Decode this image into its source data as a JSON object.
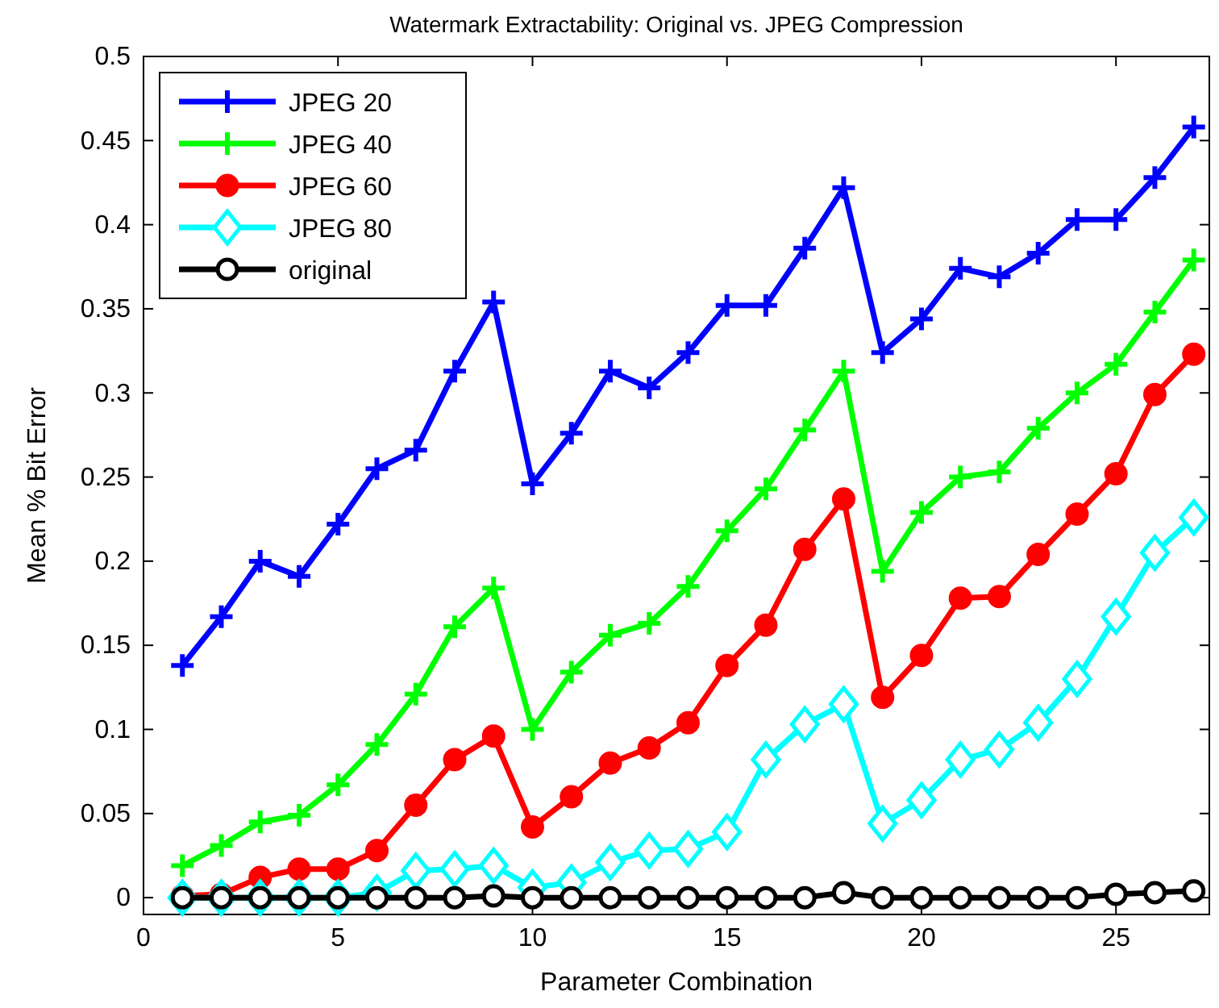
{
  "chart_data": {
    "type": "line",
    "title": "Watermark Extractability: Original vs. JPEG Compression",
    "xlabel": "Parameter Combination",
    "ylabel": "Mean % Bit Error",
    "x": [
      1,
      2,
      3,
      4,
      5,
      6,
      7,
      8,
      9,
      10,
      11,
      12,
      13,
      14,
      15,
      16,
      17,
      18,
      19,
      20,
      21,
      22,
      23,
      24,
      25,
      26,
      27
    ],
    "series": [
      {
        "name": "JPEG 20",
        "color": "#0000ff",
        "marker": "cross",
        "values": [
          0.138,
          0.167,
          0.2,
          0.191,
          0.222,
          0.255,
          0.266,
          0.313,
          0.354,
          0.246,
          0.276,
          0.313,
          0.303,
          0.324,
          0.352,
          0.352,
          0.386,
          0.422,
          0.324,
          0.344,
          0.374,
          0.369,
          0.383,
          0.403,
          0.403,
          0.428,
          0.458
        ]
      },
      {
        "name": "JPEG 40",
        "color": "#00ff00",
        "marker": "cross",
        "values": [
          0.019,
          0.031,
          0.045,
          0.049,
          0.067,
          0.091,
          0.121,
          0.161,
          0.184,
          0.1,
          0.134,
          0.156,
          0.163,
          0.185,
          0.218,
          0.243,
          0.278,
          0.313,
          0.194,
          0.229,
          0.25,
          0.253,
          0.279,
          0.3,
          0.317,
          0.348,
          0.379
        ]
      },
      {
        "name": "JPEG 60",
        "color": "#ff0000",
        "marker": "circle",
        "values": [
          0.001,
          0.002,
          0.012,
          0.017,
          0.017,
          0.028,
          0.055,
          0.082,
          0.096,
          0.042,
          0.06,
          0.08,
          0.089,
          0.104,
          0.138,
          0.162,
          0.207,
          0.237,
          0.119,
          0.144,
          0.178,
          0.179,
          0.204,
          0.228,
          0.252,
          0.299,
          0.323
        ]
      },
      {
        "name": "JPEG 80",
        "color": "#00ffff",
        "marker": "diamond",
        "values": [
          0,
          0,
          0,
          0,
          0,
          0.003,
          0.016,
          0.017,
          0.019,
          0.006,
          0.009,
          0.021,
          0.028,
          0.029,
          0.039,
          0.082,
          0.103,
          0.115,
          0.044,
          0.058,
          0.082,
          0.088,
          0.104,
          0.13,
          0.167,
          0.205,
          0.226
        ]
      },
      {
        "name": "original",
        "color": "#000000",
        "marker": "circle",
        "values": [
          0,
          0,
          0,
          0,
          0,
          0,
          0,
          0,
          0.001,
          0,
          0,
          0,
          0,
          0,
          0,
          0,
          0,
          0.003,
          0,
          0,
          0,
          0,
          0,
          0,
          0.002,
          0.003,
          0.004
        ]
      }
    ],
    "xlim": [
      0,
      27.4
    ],
    "xticks": [
      0,
      5,
      10,
      15,
      20,
      25
    ],
    "ylim": [
      -0.01,
      0.5
    ],
    "yticks": [
      0,
      0.05,
      0.1,
      0.15,
      0.2,
      0.25,
      0.3,
      0.35,
      0.4,
      0.45,
      0.5
    ],
    "grid": false,
    "legend": "top left",
    "line_style": "solid"
  }
}
